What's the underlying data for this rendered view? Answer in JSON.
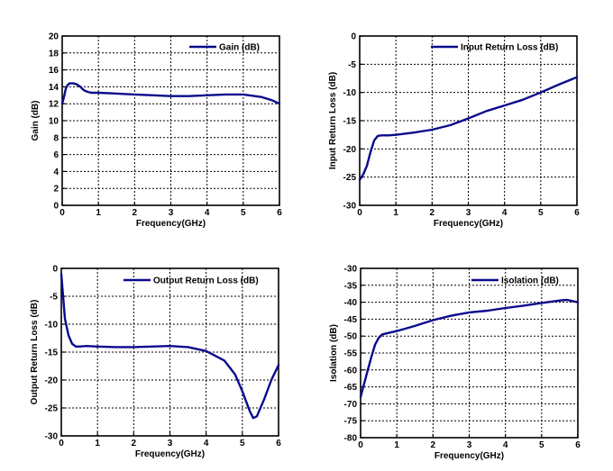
{
  "colors": {
    "series": "#0a0a8c",
    "grid": "#000000",
    "background": "#ffffff"
  },
  "chart_data": [
    {
      "type": "line",
      "xlabel": "Frequency(GHz)",
      "ylabel": "Gain (dB)",
      "xlim": [
        0,
        6
      ],
      "ylim": [
        0,
        20
      ],
      "xticks": [
        0,
        1,
        2,
        3,
        4,
        5,
        6
      ],
      "yticks": [
        0,
        2,
        4,
        6,
        8,
        10,
        12,
        14,
        16,
        18,
        20
      ],
      "grid": true,
      "legend_position": "top-right",
      "series": [
        {
          "name": "Gain (dB)",
          "x": [
            0,
            0.05,
            0.1,
            0.15,
            0.2,
            0.3,
            0.4,
            0.5,
            0.6,
            0.7,
            0.8,
            1.0,
            1.5,
            2.0,
            2.5,
            3.0,
            3.5,
            4.0,
            4.5,
            5.0,
            5.5,
            5.8,
            6.0
          ],
          "y": [
            12.0,
            12.8,
            13.8,
            14.2,
            14.4,
            14.4,
            14.3,
            14.0,
            13.6,
            13.4,
            13.3,
            13.3,
            13.2,
            13.1,
            13.0,
            12.9,
            12.9,
            13.0,
            13.1,
            13.1,
            12.8,
            12.4,
            12.0
          ]
        }
      ]
    },
    {
      "type": "line",
      "xlabel": "Frequency(GHz)",
      "ylabel": "Input Return Loss (dB)",
      "xlim": [
        0,
        6
      ],
      "ylim": [
        -30,
        0
      ],
      "xticks": [
        0,
        1,
        2,
        3,
        4,
        5,
        6
      ],
      "yticks": [
        -30,
        -25,
        -20,
        -15,
        -10,
        -5,
        0
      ],
      "grid": true,
      "legend_position": "top-right",
      "series": [
        {
          "name": "Input Return Loss (dB)",
          "x": [
            0,
            0.1,
            0.2,
            0.3,
            0.4,
            0.5,
            0.6,
            0.8,
            1.0,
            1.5,
            2.0,
            2.5,
            3.0,
            3.5,
            4.0,
            4.5,
            5.0,
            5.5,
            6.0
          ],
          "y": [
            -25.5,
            -24.5,
            -23.0,
            -20.5,
            -18.5,
            -17.7,
            -17.6,
            -17.6,
            -17.5,
            -17.1,
            -16.6,
            -15.8,
            -14.6,
            -13.3,
            -12.3,
            -11.3,
            -10.0,
            -8.6,
            -7.3
          ]
        }
      ]
    },
    {
      "type": "line",
      "xlabel": "Frequency(GHz)",
      "ylabel": "Output Return Loss (dB)",
      "xlim": [
        0,
        6
      ],
      "ylim": [
        -30,
        0
      ],
      "xticks": [
        0,
        1,
        2,
        3,
        4,
        5,
        6
      ],
      "yticks": [
        -30,
        -25,
        -20,
        -15,
        -10,
        -5,
        0
      ],
      "grid": true,
      "legend_position": "top-right",
      "series": [
        {
          "name": "Output Return Loss (dB)",
          "x": [
            0,
            0.05,
            0.1,
            0.2,
            0.3,
            0.4,
            0.5,
            0.7,
            1.0,
            1.5,
            2.0,
            2.5,
            3.0,
            3.5,
            4.0,
            4.5,
            4.8,
            5.0,
            5.2,
            5.3,
            5.4,
            5.6,
            5.8,
            6.0
          ],
          "y": [
            -1.0,
            -5.0,
            -9.0,
            -12.0,
            -13.5,
            -14.0,
            -14.0,
            -13.9,
            -14.0,
            -14.1,
            -14.1,
            -14.0,
            -13.9,
            -14.1,
            -14.8,
            -16.5,
            -19.0,
            -22.0,
            -25.5,
            -26.8,
            -26.5,
            -23.5,
            -20.0,
            -17.3
          ]
        }
      ]
    },
    {
      "type": "line",
      "xlabel": "Frequency(GHz)",
      "ylabel": "Isolation (dB)",
      "xlim": [
        0,
        6
      ],
      "ylim": [
        -80,
        -30
      ],
      "xticks": [
        0,
        1,
        2,
        3,
        4,
        5,
        6
      ],
      "yticks": [
        -80,
        -75,
        -70,
        -65,
        -60,
        -55,
        -50,
        -45,
        -40,
        -35,
        -30
      ],
      "grid": true,
      "legend_position": "top-right",
      "series": [
        {
          "name": "Isolation (dB)",
          "x": [
            0,
            0.1,
            0.2,
            0.3,
            0.4,
            0.5,
            0.6,
            0.8,
            1.0,
            1.5,
            2.0,
            2.5,
            3.0,
            3.5,
            4.0,
            4.5,
            5.0,
            5.5,
            5.7,
            6.0
          ],
          "y": [
            -68.0,
            -64.0,
            -60.0,
            -56.0,
            -52.5,
            -50.5,
            -49.5,
            -49.0,
            -48.5,
            -47.0,
            -45.3,
            -44.0,
            -43.0,
            -42.5,
            -41.7,
            -41.0,
            -40.2,
            -39.5,
            -39.3,
            -40.0
          ]
        }
      ]
    }
  ]
}
